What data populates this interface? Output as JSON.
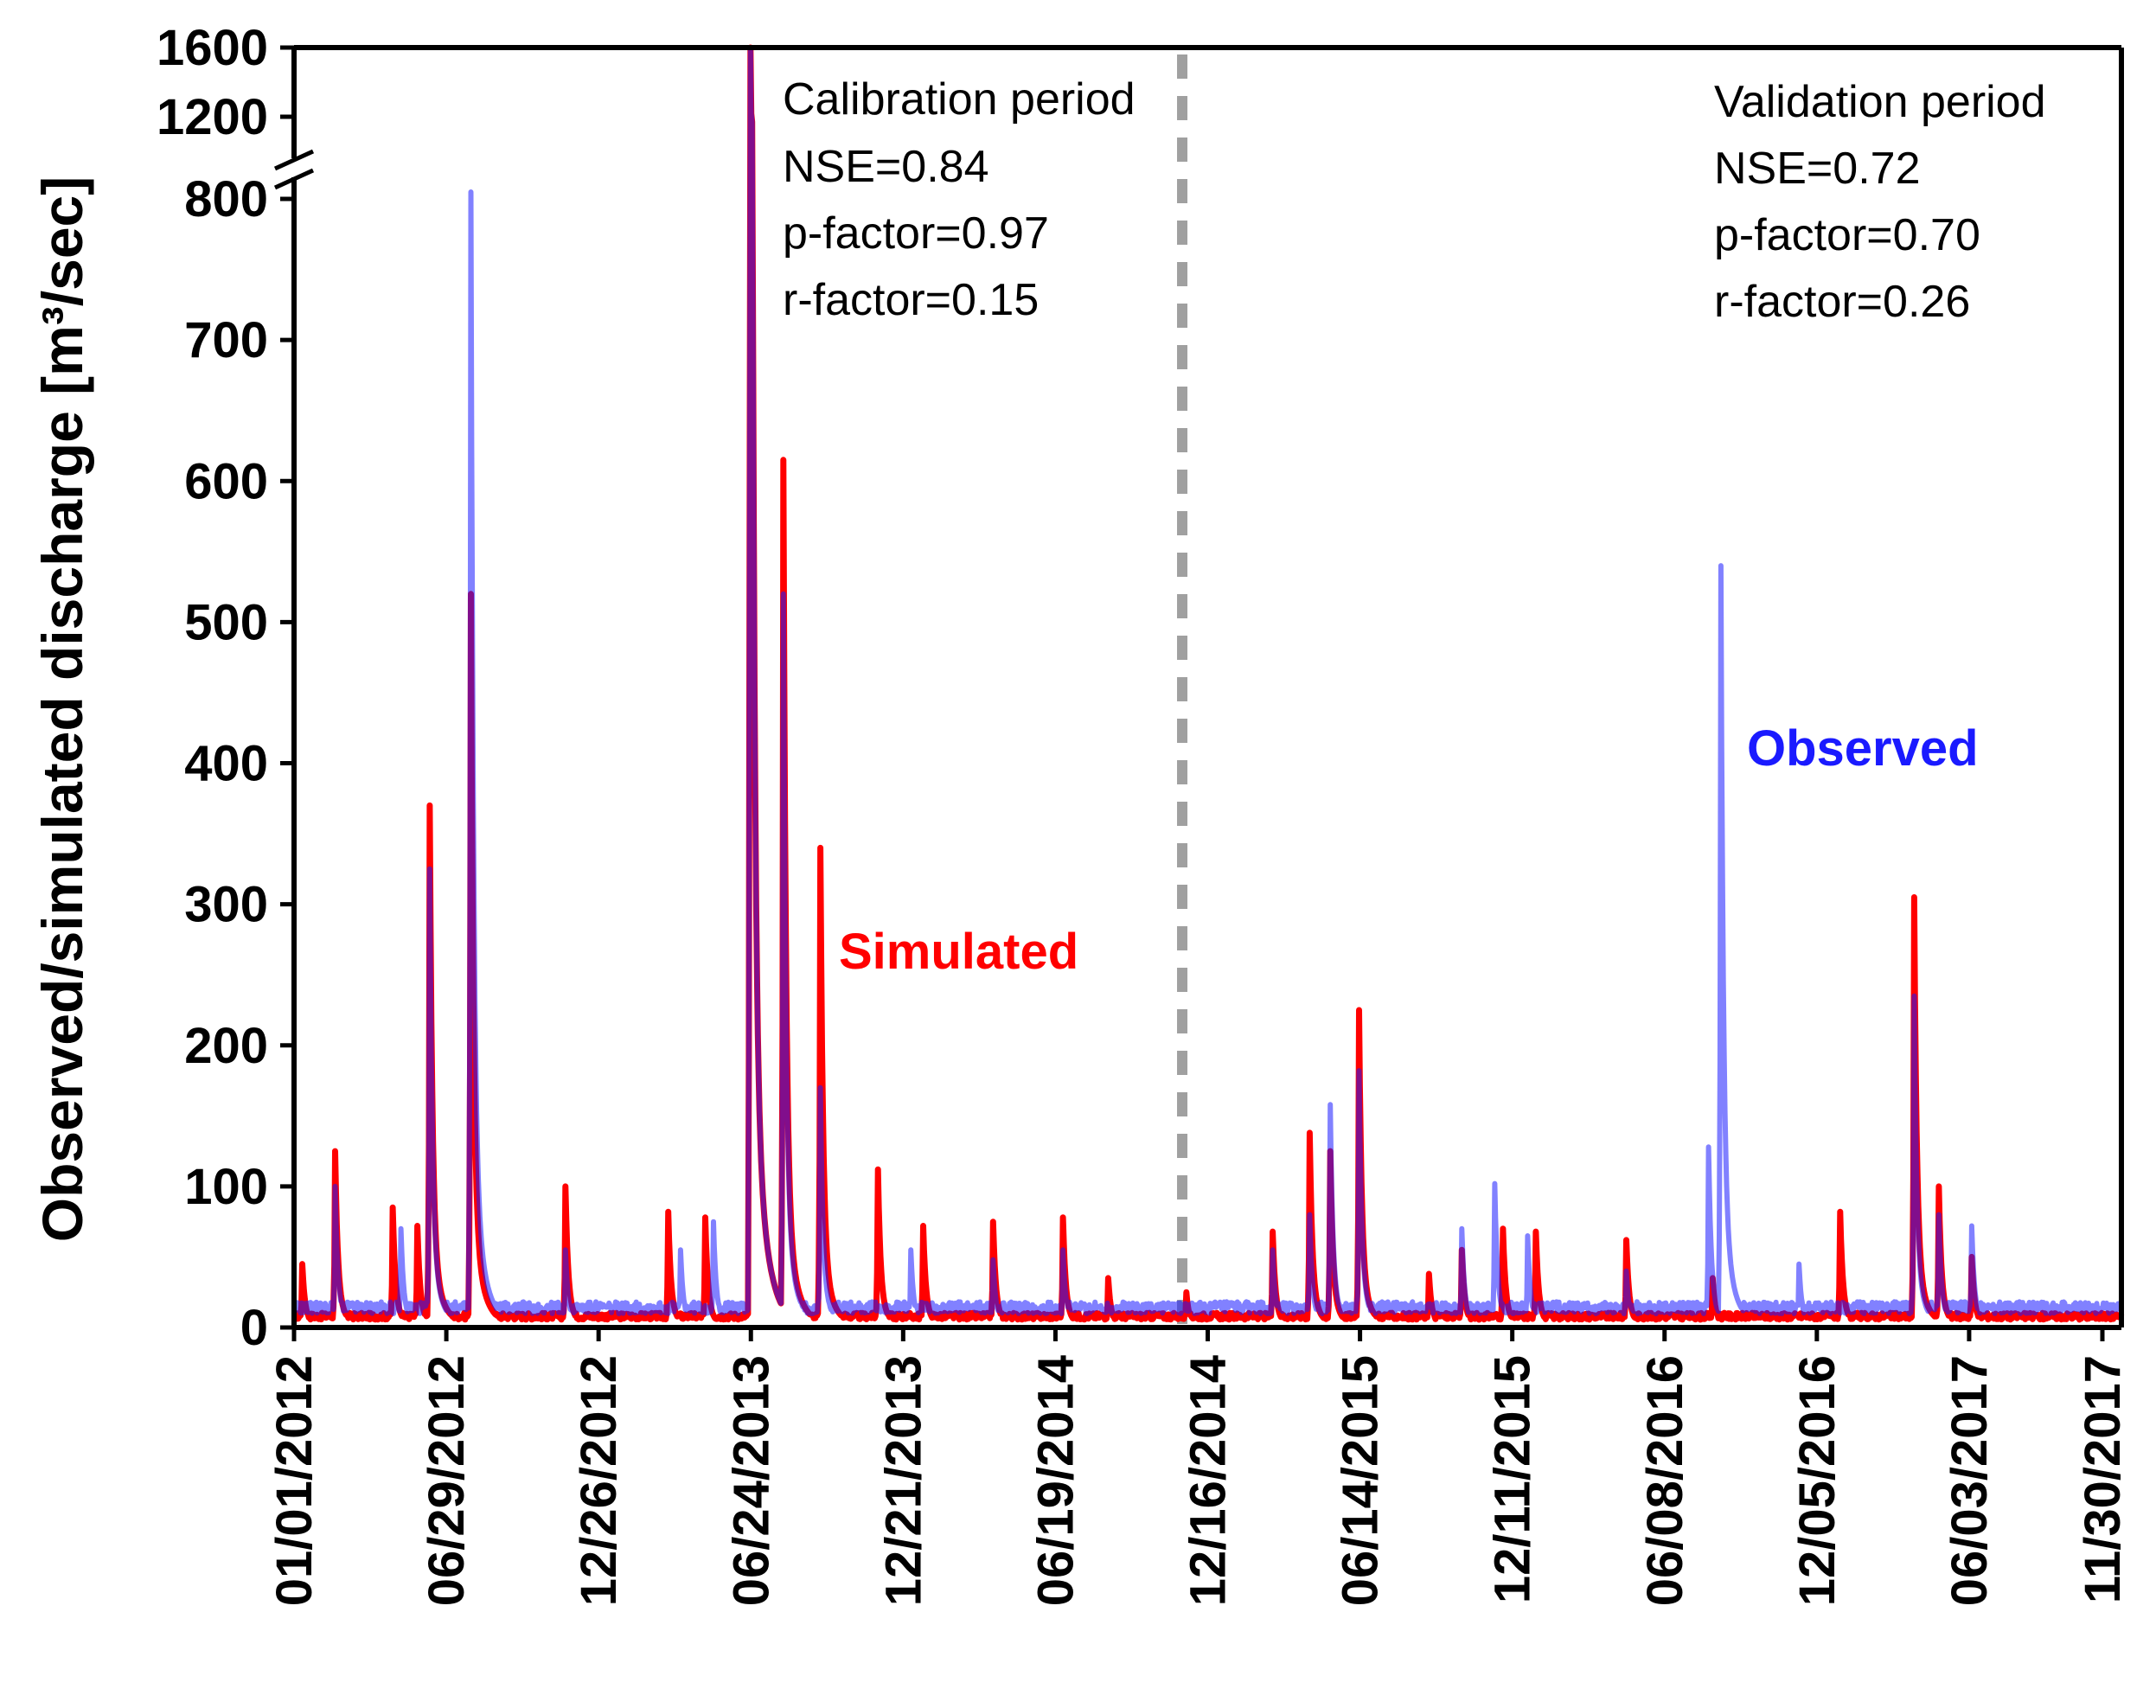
{
  "chart_data": {
    "type": "line",
    "title": "",
    "xlabel": "",
    "ylabel": "Observed/simulated discharge [m³/sec]",
    "ylim": [
      0,
      1600
    ],
    "axis_break": {
      "from": 850,
      "to": 1050
    },
    "y_ticks": [
      "0",
      "100",
      "200",
      "300",
      "400",
      "500",
      "600",
      "700",
      "800",
      "1200",
      "1600"
    ],
    "x_ticks": [
      "01/01/2012",
      "06/29/2012",
      "12/26/2012",
      "06/24/2013",
      "12/21/2013",
      "06/19/2014",
      "12/16/2014",
      "06/14/2015",
      "12/11/2015",
      "06/08/2016",
      "12/05/2016",
      "06/03/2017",
      "11/30/2017"
    ],
    "x_range_days": [
      0,
      2222
    ],
    "divider_day": 1080,
    "annotations": {
      "calibration": [
        "Calibration period",
        "NSE=0.84",
        "p-factor=0.97",
        "r-factor=0.15"
      ],
      "validation": [
        "Validation period",
        "NSE=0.72",
        "p-factor=0.70",
        "r-factor=0.26"
      ]
    },
    "series": [
      {
        "name": "Simulated",
        "color": "#ff0000",
        "base": 8,
        "events": [
          [
            10,
            45
          ],
          [
            50,
            125
          ],
          [
            120,
            85
          ],
          [
            150,
            72
          ],
          [
            165,
            370
          ],
          [
            215,
            520
          ],
          [
            330,
            100
          ],
          [
            455,
            82
          ],
          [
            500,
            78
          ],
          [
            555,
            1600
          ],
          [
            595,
            615
          ],
          [
            640,
            340
          ],
          [
            710,
            112
          ],
          [
            765,
            72
          ],
          [
            850,
            75
          ],
          [
            935,
            78
          ],
          [
            990,
            35
          ],
          [
            1085,
            25
          ],
          [
            1190,
            68
          ],
          [
            1235,
            138
          ],
          [
            1260,
            125
          ],
          [
            1295,
            225
          ],
          [
            1380,
            38
          ],
          [
            1420,
            55
          ],
          [
            1470,
            70
          ],
          [
            1510,
            68
          ],
          [
            1620,
            62
          ],
          [
            1725,
            35
          ],
          [
            1880,
            82
          ],
          [
            1970,
            305
          ],
          [
            2000,
            100
          ],
          [
            2040,
            50
          ]
        ]
      },
      {
        "name": "Observed",
        "color": "#1a1aff",
        "base": 14,
        "events": [
          [
            50,
            100
          ],
          [
            130,
            70
          ],
          [
            165,
            325
          ],
          [
            215,
            820
          ],
          [
            330,
            55
          ],
          [
            470,
            55
          ],
          [
            510,
            75
          ],
          [
            555,
            1600
          ],
          [
            595,
            520
          ],
          [
            640,
            170
          ],
          [
            750,
            55
          ],
          [
            850,
            48
          ],
          [
            935,
            55
          ],
          [
            1190,
            55
          ],
          [
            1235,
            80
          ],
          [
            1260,
            158
          ],
          [
            1295,
            182
          ],
          [
            1420,
            70
          ],
          [
            1460,
            102
          ],
          [
            1500,
            65
          ],
          [
            1620,
            40
          ],
          [
            1720,
            128
          ],
          [
            1735,
            540
          ],
          [
            1830,
            45
          ],
          [
            1970,
            235
          ],
          [
            2000,
            80
          ],
          [
            2040,
            72
          ]
        ]
      }
    ]
  }
}
